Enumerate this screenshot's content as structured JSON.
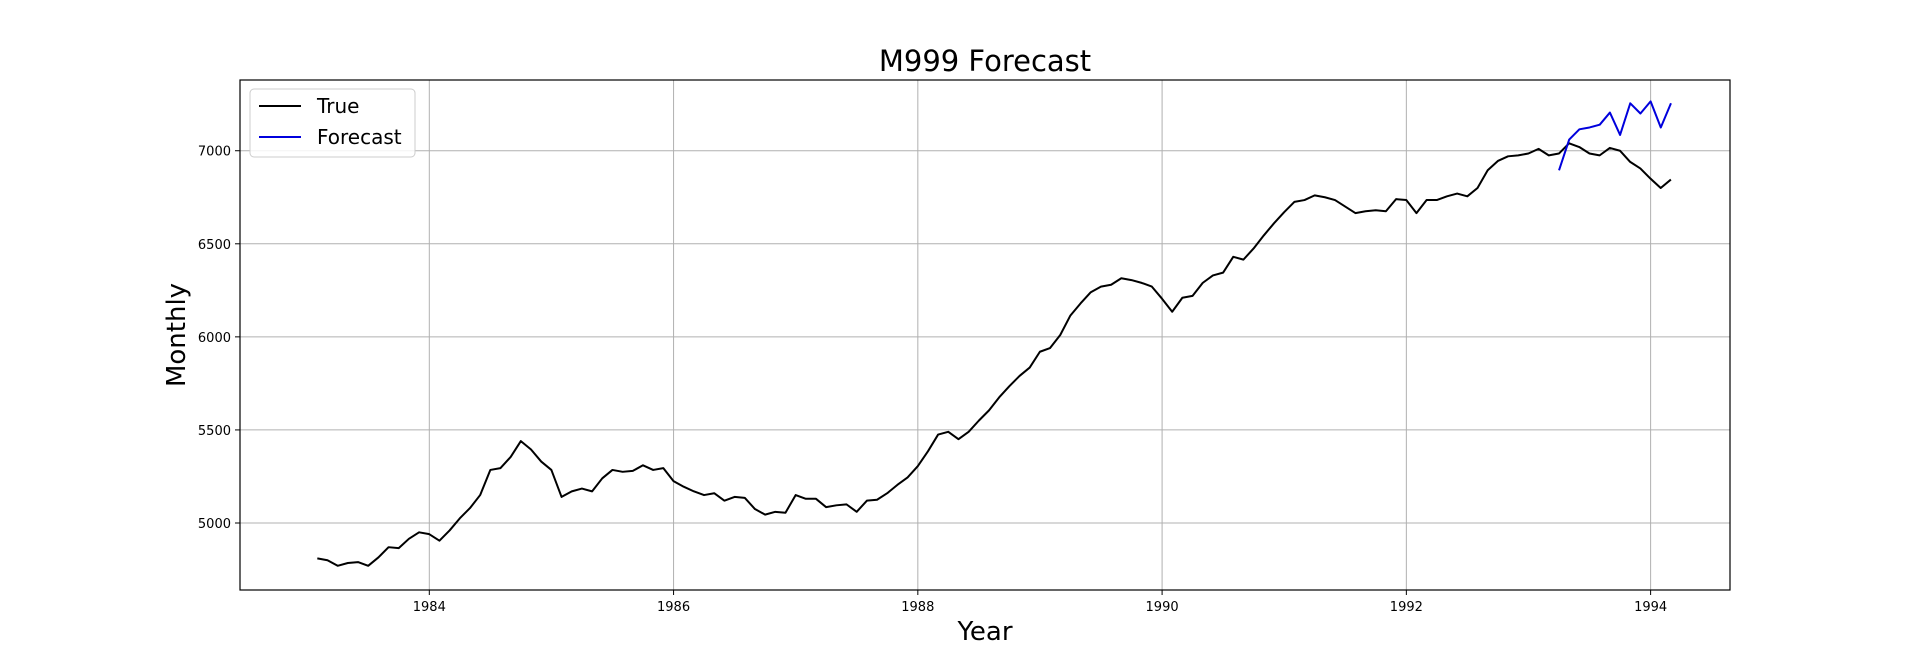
{
  "chart_data": {
    "type": "line",
    "title": "M999 Forecast",
    "xlabel": "Year",
    "ylabel": "Monthly",
    "xlim": [
      1982.45,
      1994.65
    ],
    "ylim": [
      4640,
      7380
    ],
    "xticks": [
      1984,
      1986,
      1988,
      1990,
      1992,
      1994
    ],
    "yticks": [
      5000,
      5500,
      6000,
      6500,
      7000
    ],
    "grid": true,
    "legend": "top-left",
    "series": [
      {
        "name": "True",
        "color": "#000000",
        "x_start": 1983.083,
        "x_step": 0.08333,
        "values": [
          4810,
          4800,
          4770,
          4785,
          4790,
          4770,
          4815,
          4870,
          4865,
          4915,
          4950,
          4940,
          4905,
          4960,
          5025,
          5080,
          5150,
          5285,
          5295,
          5355,
          5440,
          5395,
          5330,
          5285,
          5140,
          5170,
          5185,
          5170,
          5240,
          5285,
          5275,
          5280,
          5310,
          5285,
          5295,
          5225,
          5195,
          5170,
          5150,
          5160,
          5120,
          5140,
          5135,
          5075,
          5045,
          5060,
          5055,
          5150,
          5130,
          5130,
          5085,
          5095,
          5100,
          5060,
          5120,
          5125,
          5160,
          5205,
          5245,
          5305,
          5385,
          5475,
          5490,
          5450,
          5490,
          5550,
          5605,
          5675,
          5735,
          5790,
          5835,
          5920,
          5940,
          6010,
          6115,
          6180,
          6240,
          6270,
          6280,
          6315,
          6305,
          6290,
          6270,
          6205,
          6135,
          6210,
          6220,
          6290,
          6330,
          6345,
          6430,
          6415,
          6475,
          6545,
          6610,
          6670,
          6725,
          6735,
          6760,
          6750,
          6735,
          6700,
          6665,
          6675,
          6680,
          6675,
          6740,
          6735,
          6665,
          6735,
          6735,
          6755,
          6770,
          6755,
          6800,
          6895,
          6945,
          6970,
          6975,
          6985,
          7010,
          6975,
          6985,
          7040,
          7020,
          6985,
          6975,
          7015,
          7000,
          6940,
          6905,
          6850,
          6800,
          6845
        ]
      },
      {
        "name": "Forecast",
        "color": "#0000dd",
        "x_start": 1993.25,
        "x_step": 0.08333,
        "values": [
          6895,
          7060,
          7115,
          7125,
          7140,
          7205,
          7085,
          7255,
          7200,
          7265,
          7125,
          7255
        ]
      }
    ]
  }
}
